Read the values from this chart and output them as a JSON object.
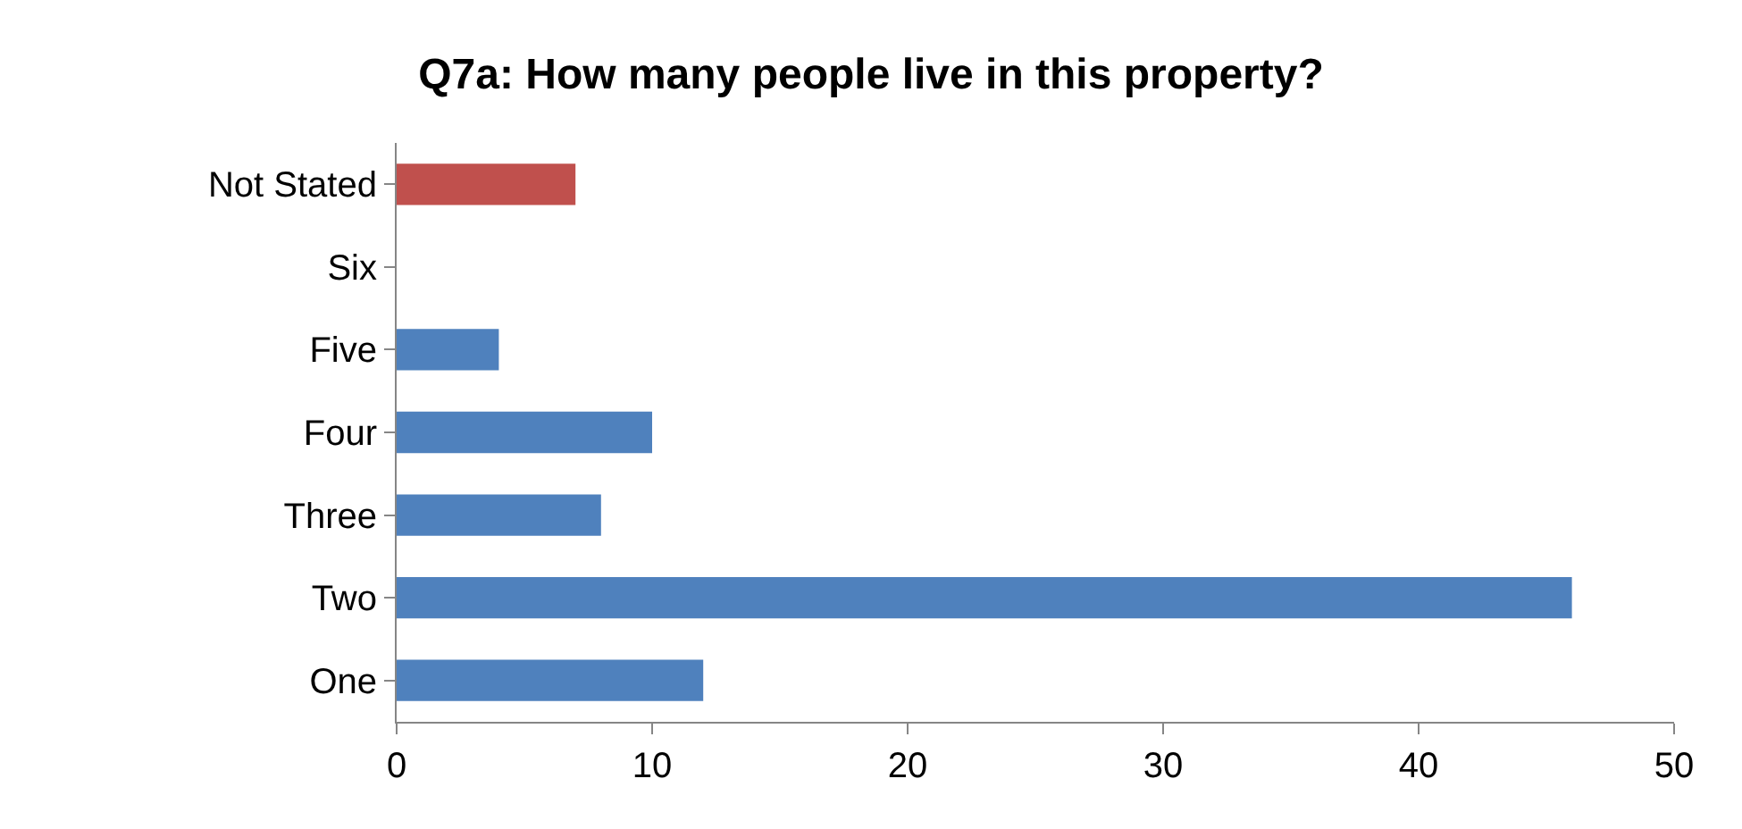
{
  "chart_data": {
    "type": "bar",
    "orientation": "horizontal",
    "title": "Q7a: How many people live in this property?",
    "categories": [
      "Not Stated",
      "Six",
      "Five",
      "Four",
      "Three",
      "Two",
      "One"
    ],
    "values": [
      7,
      0,
      4,
      10,
      8,
      46,
      12
    ],
    "colors": [
      "#c0504d",
      "#4f81bd",
      "#4f81bd",
      "#4f81bd",
      "#4f81bd",
      "#4f81bd",
      "#4f81bd"
    ],
    "xlim": [
      0,
      50
    ],
    "xticks": [
      0,
      10,
      20,
      30,
      40,
      50
    ],
    "grid": false,
    "legend": false
  }
}
